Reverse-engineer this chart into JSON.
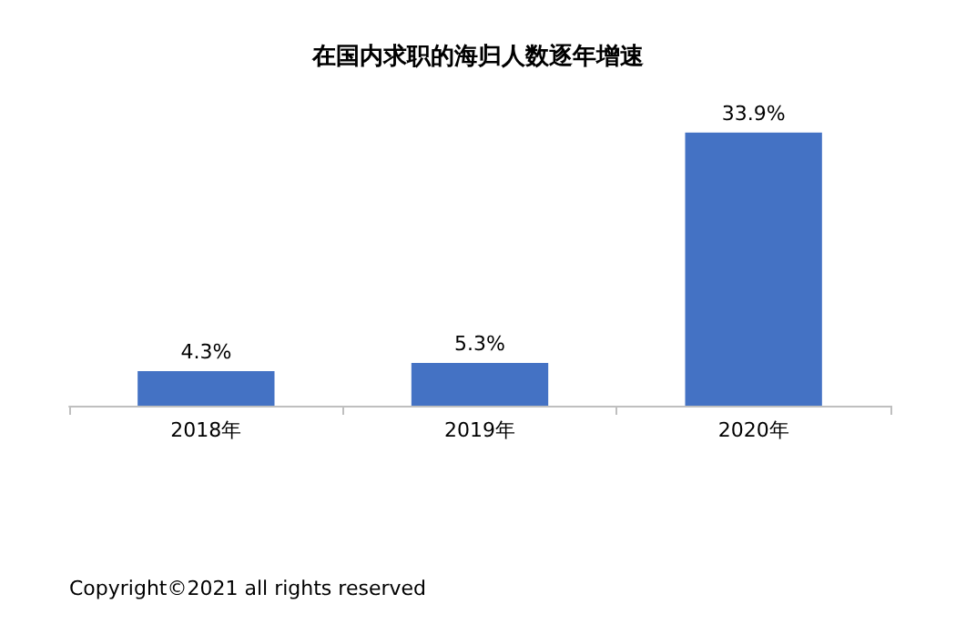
{
  "chart_data": {
    "type": "bar",
    "title": "在国内求职的海归人数逐年增速",
    "categories": [
      "2018年",
      "2019年",
      "2020年"
    ],
    "values": [
      4.3,
      5.3,
      33.9
    ],
    "value_labels": [
      "4.3%",
      "5.3%",
      "33.9%"
    ],
    "color": "#4472c4",
    "annotations": [
      "Copyright©2021 all rights reserved"
    ]
  }
}
